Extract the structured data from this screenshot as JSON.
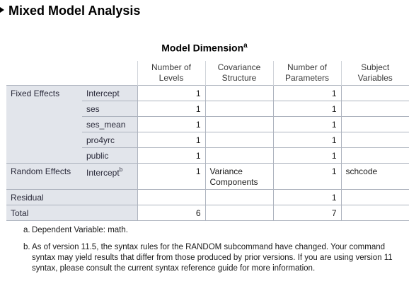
{
  "heading": "Mixed Model Analysis",
  "table": {
    "title": "Model Dimension",
    "title_footnote": "a",
    "columns": [
      "Number of Levels",
      "Covariance Structure",
      "Number of Parameters",
      "Subject Variables"
    ],
    "fixed_group_label": "Fixed Effects",
    "fixed_rows": [
      {
        "term": "Intercept",
        "levels": "1",
        "params": "1"
      },
      {
        "term": "ses",
        "levels": "1",
        "params": "1"
      },
      {
        "term": "ses_mean",
        "levels": "1",
        "params": "1"
      },
      {
        "term": "pro4yrc",
        "levels": "1",
        "params": "1"
      },
      {
        "term": "public",
        "levels": "1",
        "params": "1"
      }
    ],
    "random": {
      "group_label": "Random Effects",
      "term": "Intercept",
      "term_footnote": "b",
      "levels": "1",
      "covariance_line1": "Variance",
      "covariance_line2": "Components",
      "params": "1",
      "subject": "schcode"
    },
    "residual": {
      "label": "Residual",
      "params": "1"
    },
    "total": {
      "label": "Total",
      "levels": "6",
      "params": "7"
    }
  },
  "footnotes": [
    {
      "label": "a.",
      "text": "Dependent Variable: math."
    },
    {
      "label": "b.",
      "text": "As of version 11.5, the syntax rules for the RANDOM subcommand have changed. Your command syntax may yield results that differ from those produced by prior versions. If you are using version 11 syntax, please consult the current syntax reference guide for more information."
    }
  ]
}
